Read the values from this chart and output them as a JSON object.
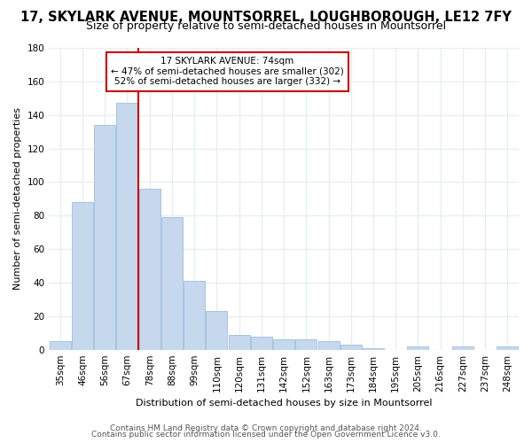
{
  "title": "17, SKYLARK AVENUE, MOUNTSORREL, LOUGHBOROUGH, LE12 7FY",
  "subtitle": "Size of property relative to semi-detached houses in Mountsorrel",
  "xlabel": "Distribution of semi-detached houses by size in Mountsorrel",
  "ylabel": "Number of semi-detached properties",
  "bar_color": "#c5d8ed",
  "bar_edge_color": "#a8c4e0",
  "categories": [
    "35sqm",
    "46sqm",
    "56sqm",
    "67sqm",
    "78sqm",
    "88sqm",
    "99sqm",
    "110sqm",
    "120sqm",
    "131sqm",
    "142sqm",
    "152sqm",
    "163sqm",
    "173sqm",
    "184sqm",
    "195sqm",
    "205sqm",
    "216sqm",
    "227sqm",
    "237sqm",
    "248sqm"
  ],
  "values": [
    5,
    88,
    134,
    147,
    96,
    79,
    41,
    23,
    9,
    8,
    6,
    6,
    5,
    3,
    1,
    0,
    2,
    0,
    2,
    0,
    2
  ],
  "ylim": [
    0,
    180
  ],
  "yticks": [
    0,
    20,
    40,
    60,
    80,
    100,
    120,
    140,
    160,
    180
  ],
  "marker_label": "17 SKYLARK AVENUE: 74sqm",
  "annotation_line1": "← 47% of semi-detached houses are smaller (302)",
  "annotation_line2": "52% of semi-detached houses are larger (332) →",
  "box_color": "#cc0000",
  "footer1": "Contains HM Land Registry data © Crown copyright and database right 2024.",
  "footer2": "Contains public sector information licensed under the Open Government Licence v3.0.",
  "background_color": "#ffffff",
  "grid_color": "#e8eef4",
  "title_fontsize": 10.5,
  "subtitle_fontsize": 9,
  "axis_label_fontsize": 8,
  "tick_fontsize": 7.5,
  "footer_fontsize": 6.5
}
